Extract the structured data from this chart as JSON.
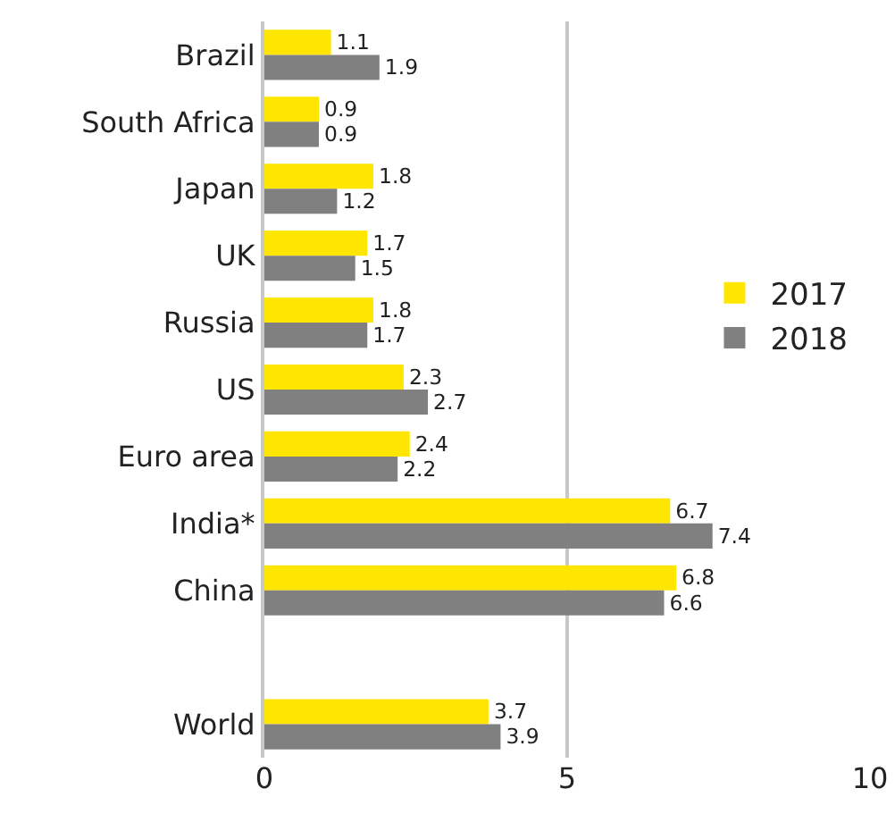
{
  "chart_data": {
    "type": "bar",
    "orientation": "horizontal",
    "categories": [
      "Brazil",
      "South Africa",
      "Japan",
      "UK",
      "Russia",
      "US",
      "Euro area",
      "India*",
      "China",
      null,
      "World"
    ],
    "series": [
      {
        "name": "2017",
        "color": "#ffe600",
        "values": [
          1.1,
          0.9,
          1.8,
          1.7,
          1.8,
          2.3,
          2.4,
          6.7,
          6.8,
          null,
          3.7
        ]
      },
      {
        "name": "2018",
        "color": "#808080",
        "values": [
          1.9,
          0.9,
          1.2,
          1.5,
          1.7,
          2.7,
          2.2,
          7.4,
          6.6,
          null,
          3.9
        ]
      }
    ],
    "xlim": [
      0,
      10
    ],
    "xticks": [
      0,
      5,
      10
    ],
    "grid": "x",
    "legend": "right",
    "data_labels": true
  }
}
